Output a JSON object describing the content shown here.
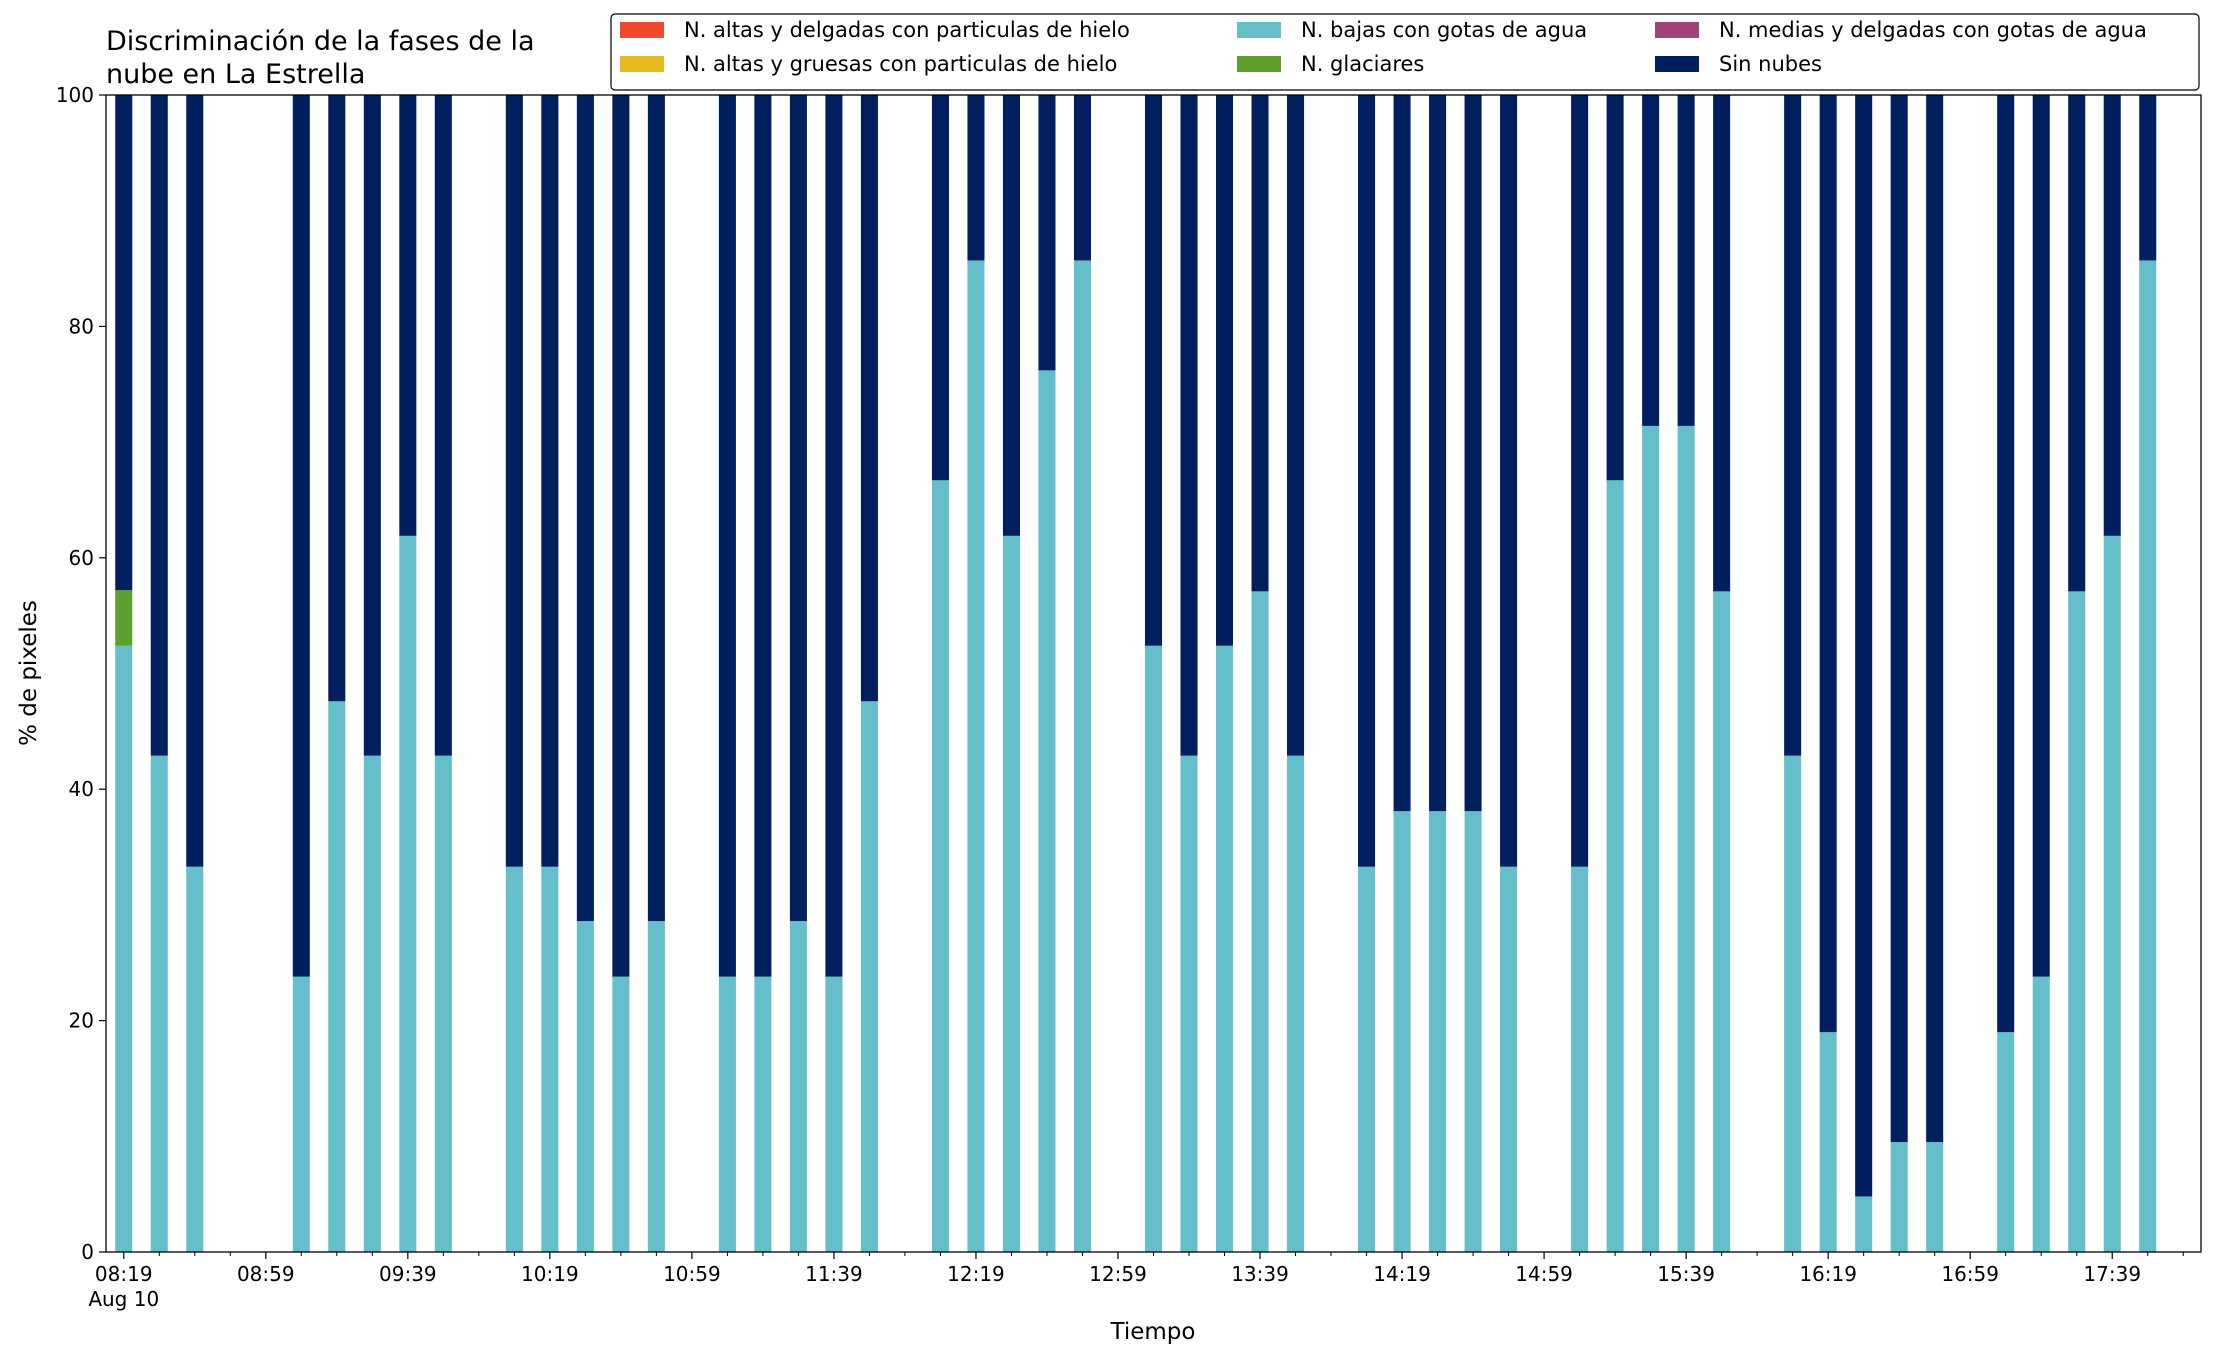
{
  "chart_data": {
    "type": "bar",
    "stacked": true,
    "title": "Discriminación de la fases de la\nnube en La Estrella",
    "xlabel": "Tiempo",
    "ylabel": "% de pixeles",
    "ylim": [
      0,
      100
    ],
    "yticks": [
      0,
      20,
      40,
      60,
      80,
      100
    ],
    "x_range": [
      "08:14",
      "18:04"
    ],
    "xticks": [
      {
        "t": "08:19",
        "label": "08:19",
        "sublabel": "Aug 10"
      },
      {
        "t": "08:59",
        "label": "08:59"
      },
      {
        "t": "09:39",
        "label": "09:39"
      },
      {
        "t": "10:19",
        "label": "10:19"
      },
      {
        "t": "10:59",
        "label": "10:59"
      },
      {
        "t": "11:39",
        "label": "11:39"
      },
      {
        "t": "12:19",
        "label": "12:19"
      },
      {
        "t": "12:59",
        "label": "12:59"
      },
      {
        "t": "13:39",
        "label": "13:39"
      },
      {
        "t": "14:19",
        "label": "14:19"
      },
      {
        "t": "14:59",
        "label": "14:59"
      },
      {
        "t": "15:39",
        "label": "15:39"
      },
      {
        "t": "16:19",
        "label": "16:19"
      },
      {
        "t": "16:59",
        "label": "16:59"
      },
      {
        "t": "17:39",
        "label": "17:39"
      }
    ],
    "minor_tick_interval_minutes": 10,
    "legend": {
      "placement": "top-right",
      "columns": 3
    },
    "series_order": [
      "altas_delgadas",
      "altas_gruesas",
      "bajas",
      "glaciares",
      "medias",
      "sin_nubes"
    ],
    "series": [
      {
        "key": "altas_delgadas",
        "name": "N. altas y delgadas con particulas de hielo",
        "color": "#EE4A2D"
      },
      {
        "key": "altas_gruesas",
        "name": "N. altas y gruesas con particulas de hielo",
        "color": "#E6B91E"
      },
      {
        "key": "medias",
        "name": "N. medias y delgadas con gotas de agua",
        "color": "#A04379"
      },
      {
        "key": "bajas",
        "name": "N. bajas con gotas de agua",
        "color": "#65BFCA"
      },
      {
        "key": "glaciares",
        "name": "N. glaciares",
        "color": "#5D9E2D"
      },
      {
        "key": "sin_nubes",
        "name": "Sin nubes",
        "color": "#001F5F"
      }
    ],
    "legend_order": [
      "altas_delgadas",
      "altas_gruesas",
      "bajas",
      "glaciares",
      "medias",
      "sin_nubes"
    ],
    "bars": [
      {
        "time": "08:19",
        "bajas": 52.4,
        "glaciares": 4.8,
        "sin_nubes": 42.8
      },
      {
        "time": "08:29",
        "bajas": 42.9,
        "sin_nubes": 57.1
      },
      {
        "time": "08:39",
        "bajas": 33.3,
        "sin_nubes": 66.7
      },
      {
        "time": "09:09",
        "bajas": 23.8,
        "sin_nubes": 76.2
      },
      {
        "time": "09:19",
        "bajas": 47.6,
        "sin_nubes": 52.4
      },
      {
        "time": "09:29",
        "bajas": 42.9,
        "sin_nubes": 57.1
      },
      {
        "time": "09:39",
        "bajas": 61.9,
        "sin_nubes": 38.1
      },
      {
        "time": "09:49",
        "bajas": 42.9,
        "sin_nubes": 57.1
      },
      {
        "time": "10:09",
        "bajas": 33.3,
        "sin_nubes": 66.7
      },
      {
        "time": "10:19",
        "bajas": 33.3,
        "sin_nubes": 66.7
      },
      {
        "time": "10:29",
        "bajas": 28.6,
        "sin_nubes": 71.4
      },
      {
        "time": "10:39",
        "bajas": 23.8,
        "sin_nubes": 76.2
      },
      {
        "time": "10:49",
        "bajas": 28.6,
        "sin_nubes": 71.4
      },
      {
        "time": "11:09",
        "bajas": 23.8,
        "sin_nubes": 76.2
      },
      {
        "time": "11:19",
        "bajas": 23.8,
        "sin_nubes": 76.2
      },
      {
        "time": "11:29",
        "bajas": 28.6,
        "sin_nubes": 71.4
      },
      {
        "time": "11:39",
        "bajas": 23.8,
        "sin_nubes": 76.2
      },
      {
        "time": "11:49",
        "bajas": 47.6,
        "sin_nubes": 52.4
      },
      {
        "time": "12:09",
        "bajas": 66.7,
        "sin_nubes": 33.3
      },
      {
        "time": "12:19",
        "bajas": 85.7,
        "sin_nubes": 14.3
      },
      {
        "time": "12:29",
        "bajas": 61.9,
        "sin_nubes": 38.1
      },
      {
        "time": "12:39",
        "bajas": 76.2,
        "sin_nubes": 23.8
      },
      {
        "time": "12:49",
        "bajas": 85.7,
        "sin_nubes": 14.3
      },
      {
        "time": "13:09",
        "bajas": 52.4,
        "sin_nubes": 47.6
      },
      {
        "time": "13:19",
        "bajas": 42.9,
        "sin_nubes": 57.1
      },
      {
        "time": "13:29",
        "bajas": 52.4,
        "sin_nubes": 47.6
      },
      {
        "time": "13:39",
        "bajas": 57.1,
        "sin_nubes": 42.9
      },
      {
        "time": "13:49",
        "bajas": 42.9,
        "sin_nubes": 57.1
      },
      {
        "time": "14:09",
        "bajas": 33.3,
        "sin_nubes": 66.7
      },
      {
        "time": "14:19",
        "bajas": 38.1,
        "sin_nubes": 61.9
      },
      {
        "time": "14:29",
        "bajas": 38.1,
        "sin_nubes": 61.9
      },
      {
        "time": "14:39",
        "bajas": 38.1,
        "sin_nubes": 61.9
      },
      {
        "time": "14:49",
        "bajas": 33.3,
        "sin_nubes": 66.7
      },
      {
        "time": "15:09",
        "bajas": 33.3,
        "sin_nubes": 66.7
      },
      {
        "time": "15:19",
        "bajas": 66.7,
        "sin_nubes": 33.3
      },
      {
        "time": "15:29",
        "bajas": 71.4,
        "sin_nubes": 28.6
      },
      {
        "time": "15:39",
        "bajas": 71.4,
        "sin_nubes": 28.6
      },
      {
        "time": "15:49",
        "bajas": 57.1,
        "sin_nubes": 42.9
      },
      {
        "time": "16:09",
        "bajas": 42.9,
        "sin_nubes": 57.1
      },
      {
        "time": "16:19",
        "bajas": 19.0,
        "sin_nubes": 81.0
      },
      {
        "time": "16:29",
        "bajas": 4.8,
        "sin_nubes": 95.2
      },
      {
        "time": "16:39",
        "bajas": 9.5,
        "sin_nubes": 90.5
      },
      {
        "time": "16:49",
        "bajas": 9.5,
        "sin_nubes": 90.5
      },
      {
        "time": "17:09",
        "bajas": 19.0,
        "sin_nubes": 81.0
      },
      {
        "time": "17:19",
        "bajas": 23.8,
        "sin_nubes": 76.2
      },
      {
        "time": "17:29",
        "bajas": 57.1,
        "sin_nubes": 42.9
      },
      {
        "time": "17:39",
        "bajas": 61.9,
        "sin_nubes": 38.1
      },
      {
        "time": "17:49",
        "bajas": 85.7,
        "sin_nubes": 14.3
      }
    ]
  }
}
